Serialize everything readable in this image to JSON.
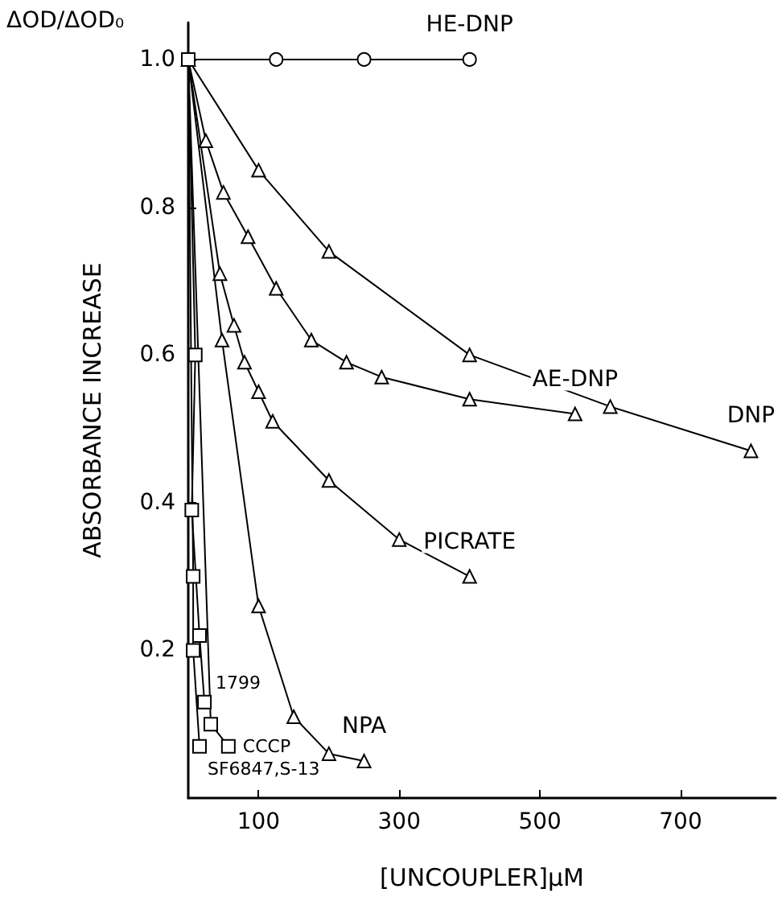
{
  "chart_data": {
    "type": "line",
    "xlabel": "[UNCOUPLER]μM",
    "ylabel": "ABSORBANCE INCREASE",
    "xlim": [
      0,
      835
    ],
    "ylim": [
      0,
      1.05
    ],
    "xticks": [
      100,
      300,
      500,
      700
    ],
    "yticks": [
      0.2,
      0.4,
      0.6,
      0.8,
      {
        "value": 1,
        "label": "1.0"
      }
    ],
    "grid": false,
    "legend": false,
    "line_style": "solid",
    "series": [
      {
        "name": "HE-DNP",
        "color": "#000000",
        "marker": "circle",
        "x": [
          0,
          125,
          250,
          400
        ],
        "values": [
          1,
          1,
          1,
          1
        ]
      },
      {
        "name": "DNP",
        "color": "#000000",
        "marker": "triangle",
        "x": [
          0,
          100,
          200,
          400,
          600,
          800
        ],
        "values": [
          1,
          0.85,
          0.74,
          0.6,
          0.53,
          0.47
        ]
      },
      {
        "name": "AE-DNP",
        "color": "#000000",
        "marker": "triangle",
        "x": [
          0,
          25,
          50,
          85,
          125,
          175,
          225,
          275,
          400,
          550
        ],
        "values": [
          1,
          0.89,
          0.82,
          0.76,
          0.69,
          0.62,
          0.59,
          0.57,
          0.54,
          0.52
        ]
      },
      {
        "name": "PICRATE",
        "color": "#000000",
        "marker": "triangle",
        "x": [
          0,
          45,
          65,
          80,
          100,
          120,
          200,
          300,
          400
        ],
        "values": [
          1,
          0.71,
          0.64,
          0.59,
          0.55,
          0.51,
          0.43,
          0.35,
          0.3
        ]
      },
      {
        "name": "NPA",
        "color": "#000000",
        "marker": "triangle",
        "x": [
          0,
          48,
          100,
          150,
          200,
          250
        ],
        "values": [
          1,
          0.62,
          0.26,
          0.11,
          0.06,
          0.05
        ]
      },
      {
        "color": "#000000",
        "marker": "square",
        "x": [
          0,
          10,
          5,
          16,
          23
        ],
        "values": [
          1,
          0.6,
          0.39,
          0.22,
          0.13
        ]
      },
      {
        "color": "#000000",
        "marker": "square",
        "x": [
          0,
          32,
          57
        ],
        "values": [
          1,
          0.1,
          0.07
        ]
      },
      {
        "color": "#000000",
        "marker": "square",
        "x": [
          0,
          7,
          7,
          16
        ],
        "values": [
          1,
          0.3,
          0.2,
          0.07
        ]
      }
    ],
    "annotations": [
      "ΔOD/ΔOD₀",
      {
        "text": "1799",
        "x": 23,
        "y": 0.13
      },
      {
        "text": "CCCP",
        "x": 57,
        "y": 0.07
      },
      {
        "text": "SF6847,S-13",
        "x": 16,
        "y": 0.07
      }
    ]
  }
}
